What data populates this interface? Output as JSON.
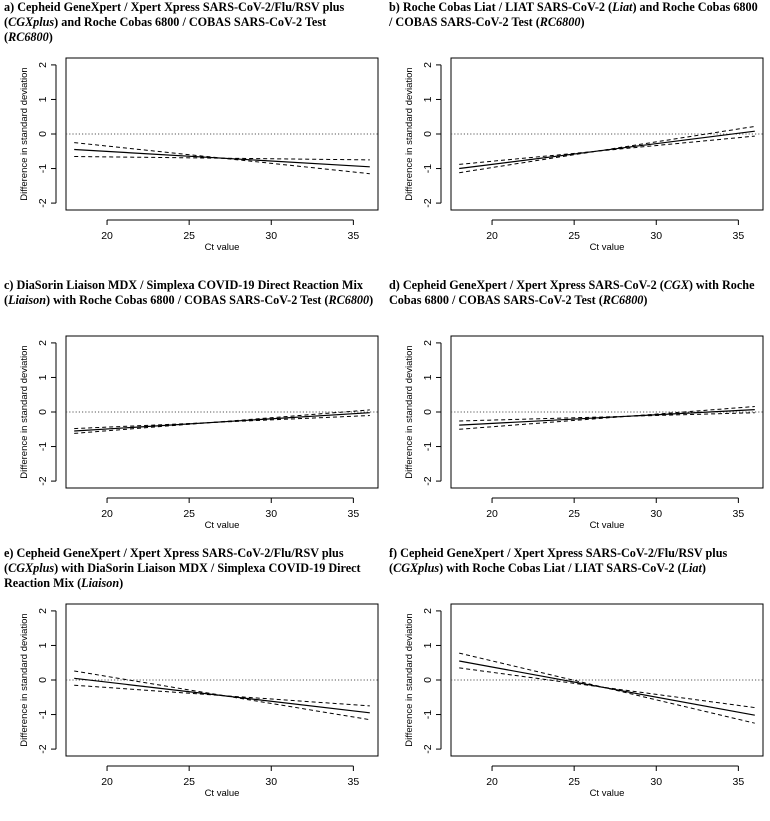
{
  "chart_data": [
    {
      "type": "line",
      "panel": "a",
      "title_segments": [
        {
          "t": "a) Cepheid GeneXpert / Xpert Xpress SARS-CoV-2/Flu/RSV plus (",
          "i": false
        },
        {
          "t": "CGXplus",
          "i": true
        },
        {
          "t": ") and Roche Cobas 6800 / COBAS SARS-CoV-2 Test (",
          "i": false
        },
        {
          "t": "RC6800",
          "i": true
        },
        {
          "t": ")",
          "i": false
        }
      ],
      "xlabel": "Ct value",
      "ylabel": "Difference in standard deviation",
      "xlim": [
        17.5,
        36.5
      ],
      "ylim": [
        -2.2,
        2.2
      ],
      "xticks": [
        20,
        25,
        30,
        35
      ],
      "yticks": [
        -2,
        -1,
        0,
        1,
        2
      ],
      "reference_line": 0,
      "series": [
        {
          "style": "solid",
          "x": [
            18,
            36
          ],
          "y": [
            -0.45,
            -0.95
          ]
        },
        {
          "style": "dashed",
          "x": [
            18,
            36
          ],
          "y": [
            -0.25,
            -1.15
          ]
        },
        {
          "style": "dashed",
          "x": [
            18,
            36
          ],
          "y": [
            -0.65,
            -0.75
          ]
        }
      ]
    },
    {
      "type": "line",
      "panel": "b",
      "title_segments": [
        {
          "t": "b) Roche Cobas Liat / LIAT SARS-CoV-2 (",
          "i": false
        },
        {
          "t": "Liat",
          "i": true
        },
        {
          "t": ") and Roche Cobas 6800 / COBAS SARS-CoV-2 Test (",
          "i": false
        },
        {
          "t": "RC6800",
          "i": true
        },
        {
          "t": ")",
          "i": false
        }
      ],
      "xlabel": "Ct value",
      "ylabel": "Difference in standard deviation",
      "xlim": [
        17.5,
        36.5
      ],
      "ylim": [
        -2.2,
        2.2
      ],
      "xticks": [
        20,
        25,
        30,
        35
      ],
      "yticks": [
        -2,
        -1,
        0,
        1,
        2
      ],
      "reference_line": 0,
      "series": [
        {
          "style": "solid",
          "x": [
            18,
            36
          ],
          "y": [
            -1.0,
            0.08
          ]
        },
        {
          "style": "dashed",
          "x": [
            18,
            36
          ],
          "y": [
            -1.12,
            0.22
          ]
        },
        {
          "style": "dashed",
          "x": [
            18,
            36
          ],
          "y": [
            -0.88,
            -0.06
          ]
        }
      ]
    },
    {
      "type": "line",
      "panel": "c",
      "title_segments": [
        {
          "t": "c) DiaSorin Liaison MDX / Simplexa COVID-19 Direct Reaction Mix (",
          "i": false
        },
        {
          "t": "Liaison",
          "i": true
        },
        {
          "t": ") with Roche Cobas 6800 / COBAS SARS-CoV-2 Test (",
          "i": false
        },
        {
          "t": "RC6800",
          "i": true
        },
        {
          "t": ")",
          "i": false
        }
      ],
      "xlabel": "Ct value",
      "ylabel": "Difference in standard deviation",
      "xlim": [
        17.5,
        36.5
      ],
      "ylim": [
        -2.2,
        2.2
      ],
      "xticks": [
        20,
        25,
        30,
        35
      ],
      "yticks": [
        -2,
        -1,
        0,
        1,
        2
      ],
      "reference_line": 0,
      "series": [
        {
          "style": "solid",
          "x": [
            18,
            36
          ],
          "y": [
            -0.55,
            -0.02
          ]
        },
        {
          "style": "dashed",
          "x": [
            18,
            36
          ],
          "y": [
            -0.62,
            0.06
          ]
        },
        {
          "style": "dashed",
          "x": [
            18,
            36
          ],
          "y": [
            -0.48,
            -0.1
          ]
        }
      ]
    },
    {
      "type": "line",
      "panel": "d",
      "title_segments": [
        {
          "t": "d) Cepheid GeneXpert / Xpert Xpress SARS-CoV-2 (",
          "i": false
        },
        {
          "t": "CGX",
          "i": true
        },
        {
          "t": ") with Roche Cobas 6800 / COBAS SARS-CoV-2 Test (",
          "i": false
        },
        {
          "t": "RC6800",
          "i": true
        },
        {
          "t": ")",
          "i": false
        }
      ],
      "xlabel": "Ct value",
      "ylabel": "Difference in standard deviation",
      "xlim": [
        17.5,
        36.5
      ],
      "ylim": [
        -2.2,
        2.2
      ],
      "xticks": [
        20,
        25,
        30,
        35
      ],
      "yticks": [
        -2,
        -1,
        0,
        1,
        2
      ],
      "reference_line": 0,
      "series": [
        {
          "style": "solid",
          "x": [
            18,
            36
          ],
          "y": [
            -0.38,
            0.07
          ]
        },
        {
          "style": "dashed",
          "x": [
            18,
            36
          ],
          "y": [
            -0.5,
            0.16
          ]
        },
        {
          "style": "dashed",
          "x": [
            18,
            36
          ],
          "y": [
            -0.26,
            -0.02
          ]
        }
      ]
    },
    {
      "type": "line",
      "panel": "e",
      "title_segments": [
        {
          "t": "e) Cepheid GeneXpert / Xpert Xpress SARS-CoV-2/Flu/RSV plus (",
          "i": false
        },
        {
          "t": "CGXplus",
          "i": true
        },
        {
          "t": ") with DiaSorin Liaison MDX / Simplexa COVID-19 Direct Reaction Mix (",
          "i": false
        },
        {
          "t": "Liaison",
          "i": true
        },
        {
          "t": ")",
          "i": false
        }
      ],
      "xlabel": "Ct value",
      "ylabel": "Difference in standard deviation",
      "xlim": [
        17.5,
        36.5
      ],
      "ylim": [
        -2.2,
        2.2
      ],
      "xticks": [
        20,
        25,
        30,
        35
      ],
      "yticks": [
        -2,
        -1,
        0,
        1,
        2
      ],
      "reference_line": 0,
      "series": [
        {
          "style": "solid",
          "x": [
            18,
            36
          ],
          "y": [
            0.05,
            -0.95
          ]
        },
        {
          "style": "dashed",
          "x": [
            18,
            36
          ],
          "y": [
            0.26,
            -1.15
          ]
        },
        {
          "style": "dashed",
          "x": [
            18,
            36
          ],
          "y": [
            -0.15,
            -0.75
          ]
        }
      ]
    },
    {
      "type": "line",
      "panel": "f",
      "title_segments": [
        {
          "t": "f) Cepheid GeneXpert / Xpert Xpress SARS-CoV-2/Flu/RSV plus (",
          "i": false
        },
        {
          "t": "CGXplus",
          "i": true
        },
        {
          "t": ") with Roche Cobas Liat / LIAT SARS-CoV-2 (",
          "i": false
        },
        {
          "t": "Liat",
          "i": true
        },
        {
          "t": ")",
          "i": false
        }
      ],
      "xlabel": "Ct value",
      "ylabel": "Difference in standard deviation",
      "xlim": [
        17.5,
        36.5
      ],
      "ylim": [
        -2.2,
        2.2
      ],
      "xticks": [
        20,
        25,
        30,
        35
      ],
      "yticks": [
        -2,
        -1,
        0,
        1,
        2
      ],
      "reference_line": 0,
      "series": [
        {
          "style": "solid",
          "x": [
            18,
            36
          ],
          "y": [
            0.55,
            -1.02
          ]
        },
        {
          "style": "dashed",
          "x": [
            18,
            36
          ],
          "y": [
            0.78,
            -1.25
          ]
        },
        {
          "style": "dashed",
          "x": [
            18,
            36
          ],
          "y": [
            0.35,
            -0.8
          ]
        }
      ]
    }
  ]
}
